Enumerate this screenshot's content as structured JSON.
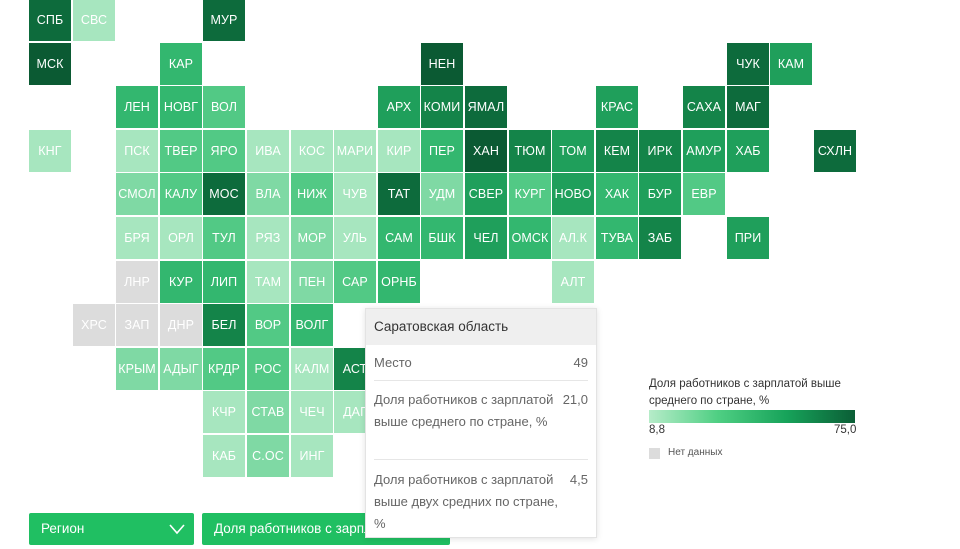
{
  "colors": {
    "c1": "#a7e6bf",
    "c2": "#7fd9a4",
    "c3": "#52c985",
    "c4": "#33b76f",
    "c5": "#1f9f5b",
    "c6": "#148449",
    "c7": "#0d6b3c",
    "c8": "#0b5a33",
    "nodata": "#dcdcdc"
  },
  "regions": [
    {
      "label": "СПБ",
      "col": 0,
      "row": 0,
      "c": "c7"
    },
    {
      "label": "СВС",
      "col": 1,
      "row": 0,
      "c": "c1"
    },
    {
      "label": "МУР",
      "col": 4,
      "row": 0,
      "c": "c7"
    },
    {
      "label": "МСК",
      "col": 0,
      "row": 1,
      "c": "c8"
    },
    {
      "label": "КАР",
      "col": 3,
      "row": 1,
      "c": "c4"
    },
    {
      "label": "НЕН",
      "col": 9,
      "row": 1,
      "c": "c8"
    },
    {
      "label": "ЧУК",
      "col": 16,
      "row": 1,
      "c": "c7"
    },
    {
      "label": "КАМ",
      "col": 17,
      "row": 1,
      "c": "c5"
    },
    {
      "label": "ЛЕН",
      "col": 2,
      "row": 2,
      "c": "c4"
    },
    {
      "label": "НОВГ",
      "col": 3,
      "row": 2,
      "c": "c4"
    },
    {
      "label": "ВОЛ",
      "col": 4,
      "row": 2,
      "c": "c3"
    },
    {
      "label": "АРХ",
      "col": 8,
      "row": 2,
      "c": "c5"
    },
    {
      "label": "КОМИ",
      "col": 9,
      "row": 2,
      "c": "c6"
    },
    {
      "label": "ЯМАЛ",
      "col": 10,
      "row": 2,
      "c": "c7"
    },
    {
      "label": "КРАС",
      "col": 13,
      "row": 2,
      "c": "c5"
    },
    {
      "label": "САХА",
      "col": 15,
      "row": 2,
      "c": "c6"
    },
    {
      "label": "МАГ",
      "col": 16,
      "row": 2,
      "c": "c7"
    },
    {
      "label": "КНГ",
      "col": 0,
      "row": 3,
      "c": "c1"
    },
    {
      "label": "ПСК",
      "col": 2,
      "row": 3,
      "c": "c1"
    },
    {
      "label": "ТВЕР",
      "col": 3,
      "row": 3,
      "c": "c3"
    },
    {
      "label": "ЯРО",
      "col": 4,
      "row": 3,
      "c": "c3"
    },
    {
      "label": "ИВА",
      "col": 5,
      "row": 3,
      "c": "c1"
    },
    {
      "label": "КОС",
      "col": 6,
      "row": 3,
      "c": "c1"
    },
    {
      "label": "МАРИ",
      "col": 7,
      "row": 3,
      "c": "c1"
    },
    {
      "label": "КИР",
      "col": 8,
      "row": 3,
      "c": "c1"
    },
    {
      "label": "ПЕР",
      "col": 9,
      "row": 3,
      "c": "c4"
    },
    {
      "label": "ХАН",
      "col": 10,
      "row": 3,
      "c": "c8"
    },
    {
      "label": "ТЮМ",
      "col": 11,
      "row": 3,
      "c": "c6"
    },
    {
      "label": "ТОМ",
      "col": 12,
      "row": 3,
      "c": "c5"
    },
    {
      "label": "КЕМ",
      "col": 13,
      "row": 3,
      "c": "c6"
    },
    {
      "label": "ИРК",
      "col": 14,
      "row": 3,
      "c": "c6"
    },
    {
      "label": "АМУР",
      "col": 15,
      "row": 3,
      "c": "c5"
    },
    {
      "label": "ХАБ",
      "col": 16,
      "row": 3,
      "c": "c5"
    },
    {
      "label": "СХЛН",
      "col": 18,
      "row": 3,
      "c": "c7"
    },
    {
      "label": "СМОЛ",
      "col": 2,
      "row": 4,
      "c": "c2"
    },
    {
      "label": "КАЛУ",
      "col": 3,
      "row": 4,
      "c": "c3"
    },
    {
      "label": "МОС",
      "col": 4,
      "row": 4,
      "c": "c7"
    },
    {
      "label": "ВЛА",
      "col": 5,
      "row": 4,
      "c": "c2"
    },
    {
      "label": "НИЖ",
      "col": 6,
      "row": 4,
      "c": "c3"
    },
    {
      "label": "ЧУВ",
      "col": 7,
      "row": 4,
      "c": "c1"
    },
    {
      "label": "ТАТ",
      "col": 8,
      "row": 4,
      "c": "c7"
    },
    {
      "label": "УДМ",
      "col": 9,
      "row": 4,
      "c": "c2"
    },
    {
      "label": "СВЕР",
      "col": 10,
      "row": 4,
      "c": "c5"
    },
    {
      "label": "КУРГ",
      "col": 11,
      "row": 4,
      "c": "c3"
    },
    {
      "label": "НОВО",
      "col": 12,
      "row": 4,
      "c": "c5"
    },
    {
      "label": "ХАК",
      "col": 13,
      "row": 4,
      "c": "c4"
    },
    {
      "label": "БУР",
      "col": 14,
      "row": 4,
      "c": "c5"
    },
    {
      "label": "ЕВР",
      "col": 15,
      "row": 4,
      "c": "c3"
    },
    {
      "label": "БРЯ",
      "col": 2,
      "row": 5,
      "c": "c1"
    },
    {
      "label": "ОРЛ",
      "col": 3,
      "row": 5,
      "c": "c1"
    },
    {
      "label": "ТУЛ",
      "col": 4,
      "row": 5,
      "c": "c3"
    },
    {
      "label": "РЯЗ",
      "col": 5,
      "row": 5,
      "c": "c1"
    },
    {
      "label": "МОР",
      "col": 6,
      "row": 5,
      "c": "c2"
    },
    {
      "label": "УЛЬ",
      "col": 7,
      "row": 5,
      "c": "c1"
    },
    {
      "label": "САМ",
      "col": 8,
      "row": 5,
      "c": "c4"
    },
    {
      "label": "БШК",
      "col": 9,
      "row": 5,
      "c": "c4"
    },
    {
      "label": "ЧЕЛ",
      "col": 10,
      "row": 5,
      "c": "c5"
    },
    {
      "label": "ОМСК",
      "col": 11,
      "row": 5,
      "c": "c4"
    },
    {
      "label": "АЛ.К",
      "col": 12,
      "row": 5,
      "c": "c1"
    },
    {
      "label": "ТУВА",
      "col": 13,
      "row": 5,
      "c": "c4"
    },
    {
      "label": "ЗАБ",
      "col": 14,
      "row": 5,
      "c": "c6"
    },
    {
      "label": "ПРИ",
      "col": 16,
      "row": 5,
      "c": "c5"
    },
    {
      "label": "ЛНР",
      "col": 2,
      "row": 6,
      "c": "nodata"
    },
    {
      "label": "КУР",
      "col": 3,
      "row": 6,
      "c": "c4"
    },
    {
      "label": "ЛИП",
      "col": 4,
      "row": 6,
      "c": "c4"
    },
    {
      "label": "ТАМ",
      "col": 5,
      "row": 6,
      "c": "c1"
    },
    {
      "label": "ПЕН",
      "col": 6,
      "row": 6,
      "c": "c2"
    },
    {
      "label": "САР",
      "col": 7,
      "row": 6,
      "c": "c3"
    },
    {
      "label": "ОРНБ",
      "col": 8,
      "row": 6,
      "c": "c4"
    },
    {
      "label": "АЛТ",
      "col": 12,
      "row": 6,
      "c": "c1"
    },
    {
      "label": "ХРС",
      "col": 1,
      "row": 7,
      "c": "nodata"
    },
    {
      "label": "ЗАП",
      "col": 2,
      "row": 7,
      "c": "nodata"
    },
    {
      "label": "ДНР",
      "col": 3,
      "row": 7,
      "c": "nodata"
    },
    {
      "label": "БЕЛ",
      "col": 4,
      "row": 7,
      "c": "c6"
    },
    {
      "label": "ВОР",
      "col": 5,
      "row": 7,
      "c": "c3"
    },
    {
      "label": "ВОЛГ",
      "col": 6,
      "row": 7,
      "c": "c4"
    },
    {
      "label": "КРЫМ",
      "col": 2,
      "row": 8,
      "c": "c2"
    },
    {
      "label": "АДЫГ",
      "col": 3,
      "row": 8,
      "c": "c2"
    },
    {
      "label": "КРДР",
      "col": 4,
      "row": 8,
      "c": "c3"
    },
    {
      "label": "РОС",
      "col": 5,
      "row": 8,
      "c": "c3"
    },
    {
      "label": "КАЛМ",
      "col": 6,
      "row": 8,
      "c": "c1"
    },
    {
      "label": "АСТ",
      "col": 7,
      "row": 8,
      "c": "c6"
    },
    {
      "label": "КЧР",
      "col": 4,
      "row": 9,
      "c": "c1"
    },
    {
      "label": "СТАВ",
      "col": 5,
      "row": 9,
      "c": "c2"
    },
    {
      "label": "ЧЕЧ",
      "col": 6,
      "row": 9,
      "c": "c1"
    },
    {
      "label": "ДАГ",
      "col": 7,
      "row": 9,
      "c": "c1"
    },
    {
      "label": "КАБ",
      "col": 4,
      "row": 10,
      "c": "c1"
    },
    {
      "label": "С.ОС",
      "col": 5,
      "row": 10,
      "c": "c2"
    },
    {
      "label": "ИНГ",
      "col": 6,
      "row": 10,
      "c": "c1"
    }
  ],
  "tooltip": {
    "title": "Саратовская область",
    "rank_label": "Место",
    "rank_value": "49",
    "above_avg_label": "Доля работников с зарплатой выше среднего по стране, %",
    "above_avg_value": "21,0",
    "above_two_avg_label": "Доля работников с зарплатой выше двух средних по стране, %",
    "above_two_avg_value": "4,5"
  },
  "legend": {
    "title": "Доля работников с зарплатой выше среднего по стране, %",
    "min": "8,8",
    "max": "75,0",
    "nodata_label": "Нет данных"
  },
  "controls": {
    "region_dropdown": "Регион",
    "metric_dropdown": "Доля работников с зарплатой выше среднего по стране, %"
  }
}
